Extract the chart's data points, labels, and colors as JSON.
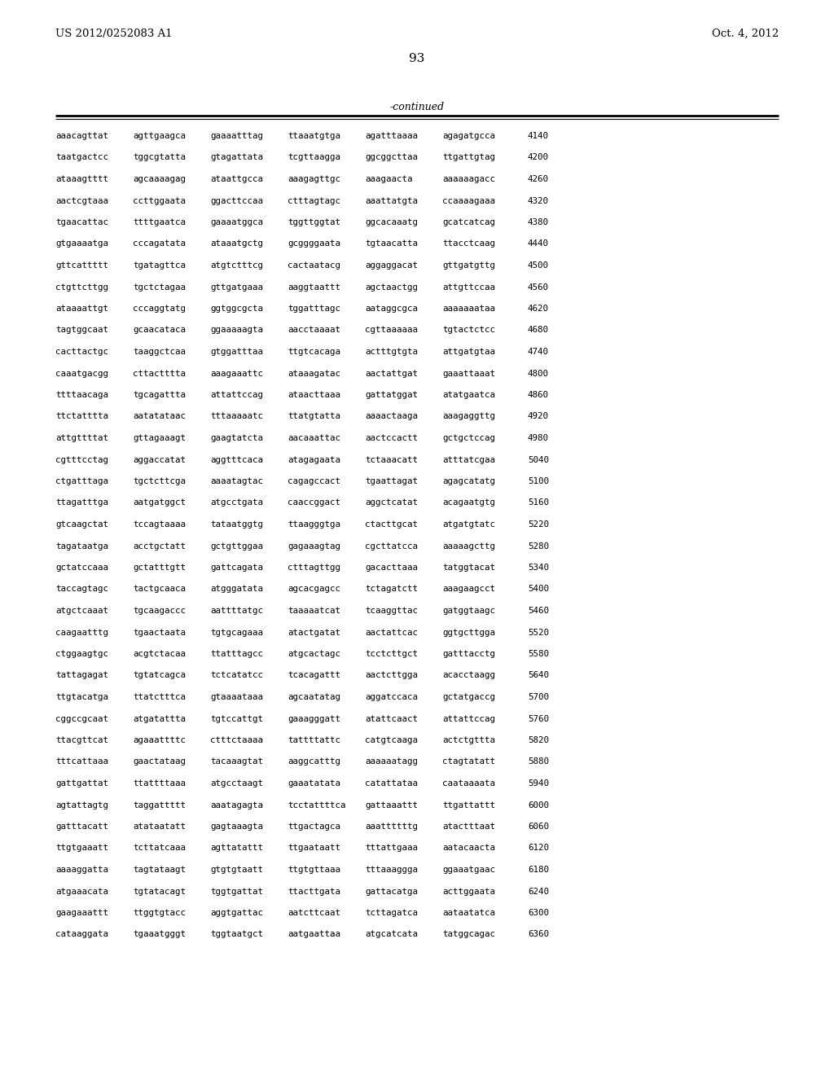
{
  "patent_number": "US 2012/0252083 A1",
  "date": "Oct. 4, 2012",
  "page_number": "93",
  "continued_label": "-continued",
  "background_color": "#ffffff",
  "text_color": "#000000",
  "sequence_lines": [
    [
      "aaacagttat",
      "agttgaagca",
      "gaaaatttag",
      "ttaaatgtga",
      "agatttaaaa",
      "agagatgcca",
      "4140"
    ],
    [
      "taatgactcc",
      "tggcgtatta",
      "gtagattata",
      "tcgttaagga",
      "ggcggcttaa",
      "ttgattgtag",
      "4200"
    ],
    [
      "ataaagtttt",
      "agcaaaagag",
      "ataattgcca",
      "aaagagttgc",
      "aaagaacta",
      "aaaaaagacc",
      "4260"
    ],
    [
      "aactcgtaaa",
      "ccttggaata",
      "ggacttccaa",
      "ctttagtagc",
      "aaattatgta",
      "ccaaaagaaa",
      "4320"
    ],
    [
      "tgaacattac",
      "ttttgaatca",
      "gaaaatggca",
      "tggttggtat",
      "ggcacaaatg",
      "gcatcatcag",
      "4380"
    ],
    [
      "gtgaaaatga",
      "cccagatata",
      "ataaatgctg",
      "gcggggaata",
      "tgtaacatta",
      "ttacctcaag",
      "4440"
    ],
    [
      "gttcattttt",
      "tgatagttca",
      "atgtctttcg",
      "cactaatacg",
      "aggaggacat",
      "gttgatgttg",
      "4500"
    ],
    [
      "ctgttcttgg",
      "tgctctagaa",
      "gttgatgaaa",
      "aaggtaattt",
      "agctaactgg",
      "attgttccaa",
      "4560"
    ],
    [
      "ataaaattgt",
      "cccaggtatg",
      "ggtggcgcta",
      "tggatttagc",
      "aataggcgca",
      "aaaaaaataa",
      "4620"
    ],
    [
      "tagtggcaat",
      "gcaacataca",
      "ggaaaaagta",
      "aacctaaaat",
      "cgttaaaaaa",
      "tgtactctcc",
      "4680"
    ],
    [
      "cacttactgc",
      "taaggctcaa",
      "gtggatttaa",
      "ttgtcacaga",
      "actttgtgta",
      "attgatgtaa",
      "4740"
    ],
    [
      "caaatgacgg",
      "cttactttta",
      "aaagaaattc",
      "ataaagatac",
      "aactattgat",
      "gaaattaaat",
      "4800"
    ],
    [
      "ttttaacaga",
      "tgcagattta",
      "attattccag",
      "ataacttaaa",
      "gattatggat",
      "atatgaatca",
      "4860"
    ],
    [
      "ttctatttta",
      "aatatataac",
      "tttaaaaatc",
      "ttatgtatta",
      "aaaactaaga",
      "aaagaggttg",
      "4920"
    ],
    [
      "attgttttat",
      "gttagaaagt",
      "gaagtatcta",
      "aacaaattac",
      "aactccactt",
      "gctgctccag",
      "4980"
    ],
    [
      "cgtttcctag",
      "aggaccatat",
      "aggtttcaca",
      "atagagaata",
      "tctaaacatt",
      "atttatcgaa",
      "5040"
    ],
    [
      "ctgatttaga",
      "tgctcttcga",
      "aaaatagtac",
      "cagagccact",
      "tgaattagat",
      "agagcatatg",
      "5100"
    ],
    [
      "ttagatttga",
      "aatgatggct",
      "atgcctgata",
      "caaccggact",
      "aggctcatat",
      "acagaatgtg",
      "5160"
    ],
    [
      "gtcaagctat",
      "tccagtaaaa",
      "tataatggtg",
      "ttaagggtga",
      "ctacttgcat",
      "atgatgtatc",
      "5220"
    ],
    [
      "tagataatga",
      "acctgctatt",
      "gctgttggaa",
      "gagaaagtag",
      "cgcttatcca",
      "aaaaagcttg",
      "5280"
    ],
    [
      "gctatccaaa",
      "gctatttgtt",
      "gattcagata",
      "ctttagttgg",
      "gacacttaaa",
      "tatggtacat",
      "5340"
    ],
    [
      "taccagtagc",
      "tactgcaaca",
      "atgggatata",
      "agcacgagcc",
      "tctagatctt",
      "aaagaagcct",
      "5400"
    ],
    [
      "atgctcaaat",
      "tgcaagaccc",
      "aattttatgc",
      "taaaaatcat",
      "tcaaggttac",
      "gatggtaagc",
      "5460"
    ],
    [
      "caagaatttg",
      "tgaactaata",
      "tgtgcagaaa",
      "atactgatat",
      "aactattcac",
      "ggtgcttgga",
      "5520"
    ],
    [
      "ctggaagtgc",
      "acgtctacaa",
      "ttatttagcc",
      "atgcactagc",
      "tcctcttgct",
      "gatttacctg",
      "5580"
    ],
    [
      "tattagagat",
      "tgtatcagca",
      "tctcatatcc",
      "tcacagattt",
      "aactcttgga",
      "acacctaagg",
      "5640"
    ],
    [
      "ttgtacatga",
      "ttatctttca",
      "gtaaaataaa",
      "agcaatatag",
      "aggatccaca",
      "gctatgaccg",
      "5700"
    ],
    [
      "cggccgcaat",
      "atgatattta",
      "tgtccattgt",
      "gaaagggatt",
      "atattcaact",
      "attattccag",
      "5760"
    ],
    [
      "ttacgttcat",
      "agaaattttc",
      "ctttctaaaa",
      "tattttattc",
      "catgtcaaga",
      "actctgttta",
      "5820"
    ],
    [
      "tttcattaaa",
      "gaactataag",
      "tacaaagtat",
      "aaggcatttg",
      "aaaaaatagg",
      "ctagtatatt",
      "5880"
    ],
    [
      "gattgattat",
      "ttattttaaa",
      "atgcctaagt",
      "gaaatatata",
      "catattataa",
      "caataaaata",
      "5940"
    ],
    [
      "agtattagtg",
      "taggattttt",
      "aaatagagta",
      "tcctattttca",
      "gattaaattt",
      "ttgattattt",
      "6000"
    ],
    [
      "gatttacatt",
      "atataatatt",
      "gagtaaagta",
      "ttgactagca",
      "aaattttttg",
      "atactttaat",
      "6060"
    ],
    [
      "ttgtgaaatt",
      "tcttatcaaa",
      "agttatattt",
      "ttgaataatt",
      "tttattgaaa",
      "aatacaacta",
      "6120"
    ],
    [
      "aaaaggatta",
      "tagtataagt",
      "gtgtgtaatt",
      "ttgtgttaaa",
      "tttaaaggga",
      "ggaaatgaac",
      "6180"
    ],
    [
      "atgaaacata",
      "tgtatacagt",
      "tggtgattat",
      "ttacttgata",
      "gattacatga",
      "acttggaata",
      "6240"
    ],
    [
      "gaagaaattt",
      "ttggtgtacc",
      "aggtgattac",
      "aatcttcaat",
      "tcttagatca",
      "aataatatca",
      "6300"
    ],
    [
      "cataaggata",
      "tgaaatgggt",
      "tggtaatgct",
      "aatgaattaa",
      "atgcatcata",
      "tatggcagac",
      "6360"
    ]
  ]
}
